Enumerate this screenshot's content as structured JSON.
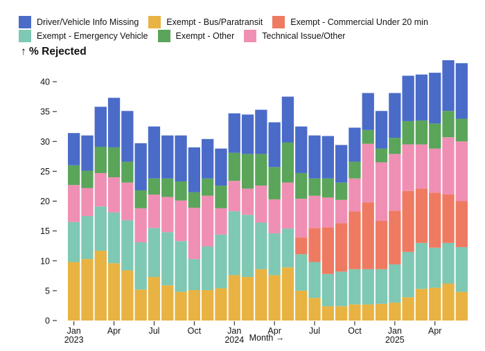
{
  "chart_data": {
    "type": "bar",
    "stacked": true,
    "title": "",
    "xlabel": "Month →",
    "ylabel": "↑ % Rejected",
    "ylim": [
      0,
      44
    ],
    "yticks": [
      0,
      5,
      10,
      15,
      20,
      25,
      30,
      35,
      40
    ],
    "grid": false,
    "legend_position": "top",
    "x_tick_labels": [
      {
        "index": 0,
        "label": "Jan",
        "year": "2023"
      },
      {
        "index": 3,
        "label": "Apr",
        "year": ""
      },
      {
        "index": 6,
        "label": "Jul",
        "year": ""
      },
      {
        "index": 9,
        "label": "Oct",
        "year": ""
      },
      {
        "index": 12,
        "label": "Jan",
        "year": "2024"
      },
      {
        "index": 15,
        "label": "Apr",
        "year": ""
      },
      {
        "index": 18,
        "label": "Jul",
        "year": ""
      },
      {
        "index": 21,
        "label": "Oct",
        "year": ""
      },
      {
        "index": 24,
        "label": "Jan",
        "year": "2025"
      },
      {
        "index": 27,
        "label": "Apr",
        "year": ""
      }
    ],
    "categories": [
      "2023-01",
      "2023-02",
      "2023-03",
      "2023-04",
      "2023-05",
      "2023-06",
      "2023-07",
      "2023-08",
      "2023-09",
      "2023-10",
      "2023-11",
      "2023-12",
      "2024-01",
      "2024-02",
      "2024-03",
      "2024-04",
      "2024-05",
      "2024-06",
      "2024-07",
      "2024-08",
      "2024-09",
      "2024-10",
      "2024-11",
      "2024-12",
      "2025-01",
      "2025-02",
      "2025-03",
      "2025-04",
      "2025-05",
      "2025-06"
    ],
    "series": [
      {
        "name": "Exempt - Bus/Paratransit",
        "color": "#e8b342",
        "values": [
          9.8,
          10.3,
          11.7,
          9.6,
          8.4,
          5.2,
          7.3,
          5.9,
          4.8,
          5.1,
          5.1,
          5.4,
          7.6,
          7.3,
          8.6,
          7.6,
          8.9,
          5.0,
          3.8,
          2.4,
          2.4,
          2.7,
          2.7,
          2.8,
          3.0,
          3.9,
          5.3,
          5.5,
          6.2,
          4.8
        ]
      },
      {
        "name": "Exempt - Emergency Vehicle",
        "color": "#7ec8b4",
        "values": [
          6.7,
          7.2,
          7.4,
          8.5,
          8.4,
          7.9,
          8.2,
          8.9,
          8.5,
          5.2,
          7.3,
          9.0,
          10.7,
          10.4,
          7.8,
          7.0,
          6.5,
          6.1,
          6.0,
          5.4,
          5.8,
          5.9,
          5.9,
          5.8,
          6.4,
          7.6,
          7.7,
          6.7,
          6.8,
          7.5
        ]
      },
      {
        "name": "Exempt - Commercial Under 20 min",
        "color": "#ef7a62",
        "values": [
          0,
          0,
          0,
          0,
          0,
          0,
          0,
          0,
          0,
          0,
          0,
          0,
          0,
          0,
          0,
          0,
          0,
          2.8,
          5.7,
          7.8,
          8.1,
          9.7,
          11.2,
          8.1,
          9.0,
          10.2,
          9.1,
          9.2,
          8.1,
          7.7
        ]
      },
      {
        "name": "Technical Issue/Other",
        "color": "#f08fb4",
        "values": [
          6.2,
          4.7,
          5.6,
          5.9,
          6.3,
          5.7,
          5.6,
          5.9,
          6.8,
          8.6,
          8.5,
          4.4,
          5.1,
          4.4,
          6.2,
          5.7,
          7.7,
          6.5,
          5.4,
          5.0,
          3.9,
          5.5,
          9.8,
          9.8,
          9.5,
          7.8,
          7.4,
          7.4,
          9.6,
          10.0
        ]
      },
      {
        "name": "Exempt - Other",
        "color": "#5aa55a",
        "values": [
          3.3,
          2.9,
          4.4,
          5.0,
          3.5,
          3.0,
          2.7,
          3.1,
          3.2,
          2.6,
          2.9,
          3.8,
          4.7,
          5.8,
          5.3,
          5.4,
          6.7,
          4.3,
          2.9,
          3.2,
          2.9,
          2.8,
          2.3,
          2.3,
          2.7,
          3.9,
          4.0,
          4.2,
          4.4,
          3.8
        ]
      },
      {
        "name": "Driver/Vehicle Info Missing",
        "color": "#4a6bc8",
        "values": [
          5.4,
          5.9,
          6.7,
          8.3,
          8.5,
          7.9,
          8.7,
          7.2,
          7.7,
          7.5,
          6.6,
          6.2,
          6.6,
          6.6,
          7.4,
          7.5,
          7.7,
          7.8,
          7.2,
          7.1,
          6.3,
          5.7,
          6.2,
          6.3,
          7.5,
          7.6,
          7.7,
          8.5,
          8.5,
          9.3
        ]
      }
    ]
  },
  "legend": {
    "rows": [
      [
        {
          "label": "Driver/Vehicle Info Missing",
          "color": "#4a6bc8"
        },
        {
          "label": "Exempt - Bus/Paratransit",
          "color": "#e8b342"
        },
        {
          "label": "Exempt - Commercial Under 20 min",
          "color": "#ef7a62"
        }
      ],
      [
        {
          "label": "Exempt - Emergency Vehicle",
          "color": "#7ec8b4"
        },
        {
          "label": "Exempt - Other",
          "color": "#5aa55a"
        },
        {
          "label": "Technical Issue/Other",
          "color": "#f08fb4"
        }
      ]
    ]
  }
}
